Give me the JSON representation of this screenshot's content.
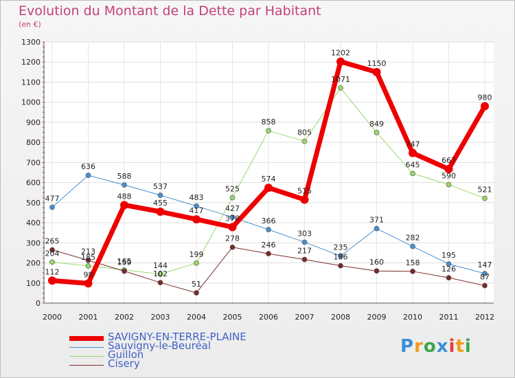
{
  "title": "Evolution du Montant de la Dette par Habitant",
  "subtitle": "(en €)",
  "brand": {
    "letters": [
      "P",
      "r",
      "o",
      "x",
      "i",
      "t",
      "i"
    ],
    "colors": [
      "#3a8fd8",
      "#f39b1d",
      "#3aa64a",
      "#3a8fd8",
      "#e23a3a",
      "#f39b1d",
      "#3aa64a"
    ]
  },
  "chart_data": {
    "type": "line",
    "x": [
      "2000",
      "2001",
      "2002",
      "2003",
      "2004",
      "2005",
      "2006",
      "2007",
      "2008",
      "2009",
      "2010",
      "2011",
      "2012"
    ],
    "ylim": [
      0,
      1300
    ],
    "yticks": [
      "0",
      "100",
      "200",
      "300",
      "400",
      "500",
      "600",
      "700",
      "800",
      "900",
      "1000",
      "1100",
      "1200",
      "1300"
    ],
    "grid": true,
    "legend_position": "bottom-left",
    "series": [
      {
        "name": "Sauvigny-le-Beuréal",
        "color": "#4a90d0",
        "width": 1,
        "values": [
          477,
          636,
          588,
          537,
          483,
          427,
          366,
          303,
          235,
          371,
          282,
          195,
          147
        ],
        "labels": [
          "477",
          "636",
          "588",
          "537",
          "483",
          "427",
          "366",
          "303",
          "235",
          "371",
          "282",
          "195",
          "147"
        ]
      },
      {
        "name": "Guillon",
        "color": "#99d86a",
        "width": 1,
        "values": [
          204,
          185,
          165,
          144,
          199,
          525,
          858,
          805,
          1071,
          849,
          645,
          590,
          521
        ],
        "labels": [
          "204",
          "185",
          "165",
          "144",
          "199",
          "525",
          "858",
          "805",
          "1071",
          "849",
          "645",
          "590",
          "521"
        ]
      },
      {
        "name": "Cisery",
        "color": "#7a2a2a",
        "width": 1,
        "values": [
          265,
          213,
          159,
          102,
          51,
          278,
          246,
          217,
          186,
          160,
          158,
          126,
          87
        ],
        "labels": [
          "265",
          "213",
          "159",
          "102",
          "51",
          "278",
          "246",
          "217",
          "186",
          "160",
          "158",
          "126",
          "87"
        ]
      },
      {
        "name": "SAVIGNY-EN-TERRE-PLAINE",
        "color": "#ee0000",
        "width": 7,
        "values": [
          112,
          98,
          488,
          455,
          417,
          378,
          574,
          515,
          1202,
          1150,
          747,
          667,
          980
        ],
        "labels": [
          "112",
          "98",
          "488",
          "455",
          "417",
          "378",
          "574",
          "515",
          "1202",
          "1150",
          "747",
          "667",
          "980"
        ]
      }
    ]
  },
  "legend": [
    {
      "name": "SAVIGNY-EN-TERRE-PLAINE",
      "color": "#ee0000",
      "width": 7
    },
    {
      "name": "Sauvigny-le-Beuréal",
      "color": "#4a90d0",
      "width": 1
    },
    {
      "name": "Guillon",
      "color": "#99d86a",
      "width": 1
    },
    {
      "name": "Cisery",
      "color": "#7a2a2a",
      "width": 1
    }
  ]
}
